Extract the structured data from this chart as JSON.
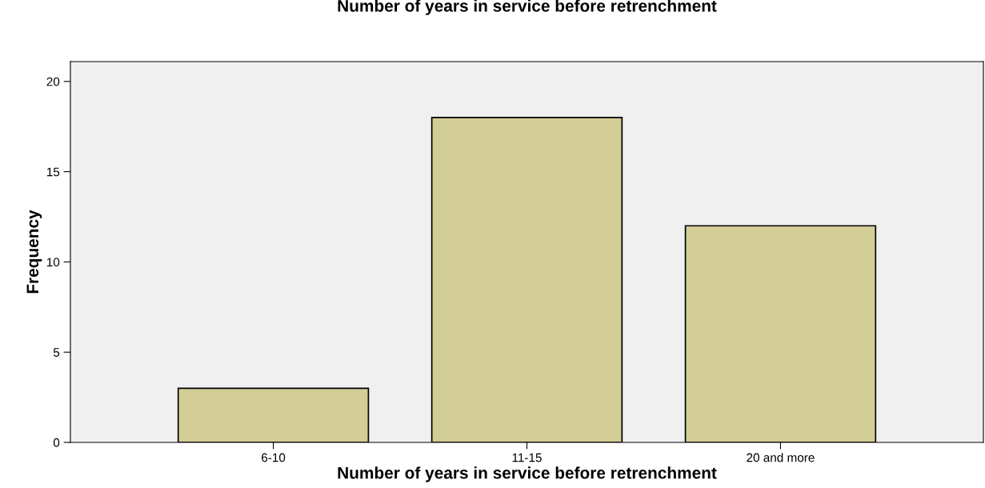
{
  "chart_data": {
    "type": "bar",
    "title": "Number of years in service before retrenchment",
    "xlabel": "Number of years in service before retrenchment",
    "ylabel": "Frequency",
    "categories": [
      "6-10",
      "11-15",
      "20 and more"
    ],
    "values": [
      3,
      18,
      12
    ],
    "color": "#d3cd97",
    "ylim": [
      0,
      21.1
    ],
    "yticks": [
      0,
      5,
      10,
      15,
      20
    ],
    "grid": false,
    "legend": false
  }
}
